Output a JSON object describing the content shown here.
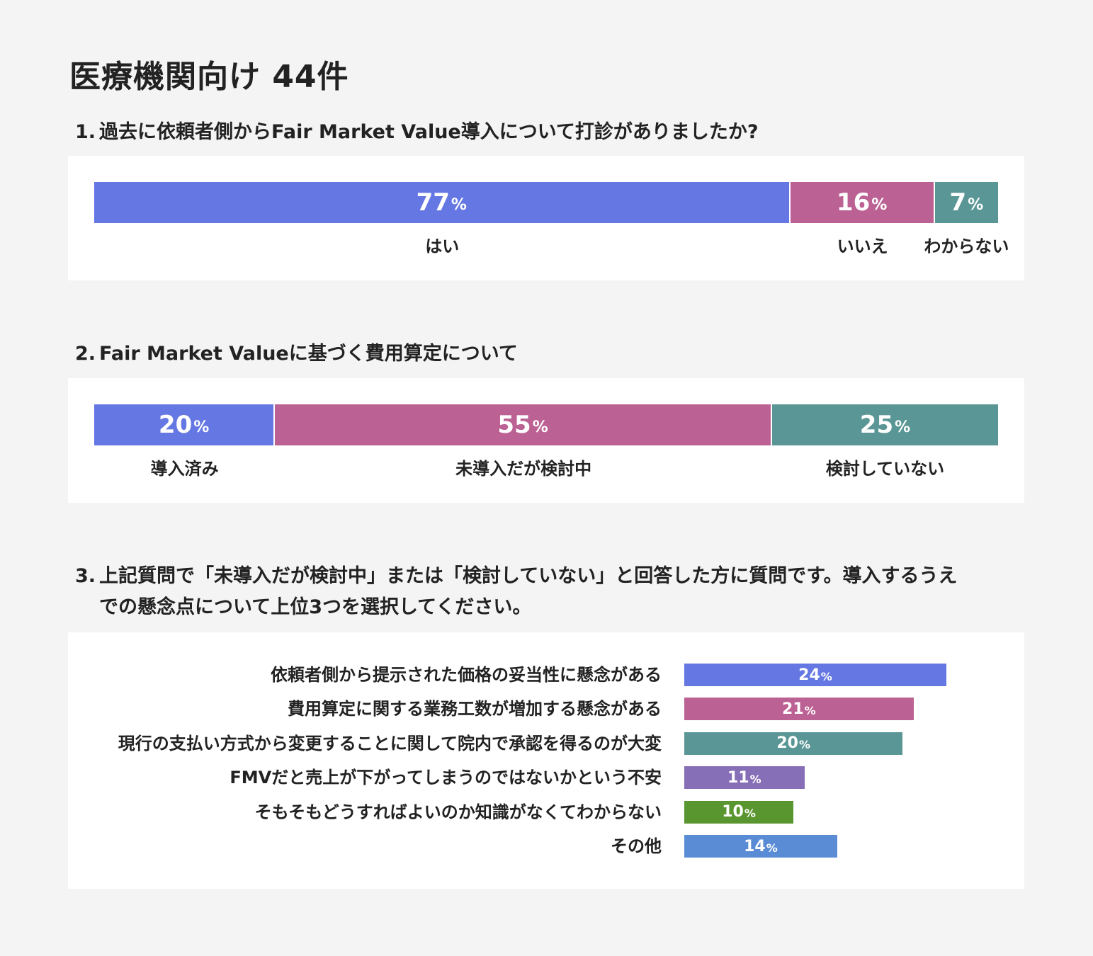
{
  "page_title": "医療機関向け 44件",
  "colors": {
    "blue": "#6577e3",
    "magenta": "#bc6193",
    "teal": "#5b9696",
    "purple": "#866fb6",
    "green": "#5a962f",
    "lightblue": "#5a8cd6"
  },
  "questions": [
    {
      "number": "1.",
      "title": "過去に依頼者側からFair Market Value導入について打診がありましたか?"
    },
    {
      "number": "2.",
      "title": "Fair Market Valueに基づく費用算定について"
    },
    {
      "number": "3.",
      "title_line1": "上記質問で「未導入だが検討中」または「検討していない」と回答した方に質問です。導入するうえ",
      "title_line2": "での懸念点について上位3つを選択してください。"
    }
  ],
  "chart_data": [
    {
      "type": "bar",
      "orientation": "horizontal-stacked",
      "unit": "%",
      "categories": [
        "はい",
        "いいえ",
        "わからない"
      ],
      "values": [
        77,
        16,
        7
      ],
      "colors": [
        "#6577e3",
        "#bc6193",
        "#5b9696"
      ],
      "value_labels": [
        "77",
        "16",
        "7"
      ]
    },
    {
      "type": "bar",
      "orientation": "horizontal-stacked",
      "unit": "%",
      "categories": [
        "導入済み",
        "未導入だが検討中",
        "検討していない"
      ],
      "values": [
        20,
        55,
        25
      ],
      "colors": [
        "#6577e3",
        "#bc6193",
        "#5b9696"
      ],
      "value_labels": [
        "20",
        "55",
        "25"
      ]
    },
    {
      "type": "bar",
      "orientation": "horizontal",
      "unit": "%",
      "categories": [
        "依頼者側から提示された価格の妥当性に懸念がある",
        "費用算定に関する業務工数が増加する懸念がある",
        "現行の支払い方式から変更することに関して院内で承認を得るのが大変",
        "FMVだと売上が下がってしまうのではないかという不安",
        "そもそもどうすればよいのか知識がなくてわからない",
        "その他"
      ],
      "values": [
        24,
        21,
        20,
        11,
        10,
        14
      ],
      "colors": [
        "#6577e3",
        "#bc6193",
        "#5b9696",
        "#866fb6",
        "#5a962f",
        "#5a8cd6"
      ],
      "value_labels": [
        "24",
        "21",
        "20",
        "11",
        "10",
        "14"
      ],
      "xlim": [
        0,
        100
      ]
    }
  ]
}
